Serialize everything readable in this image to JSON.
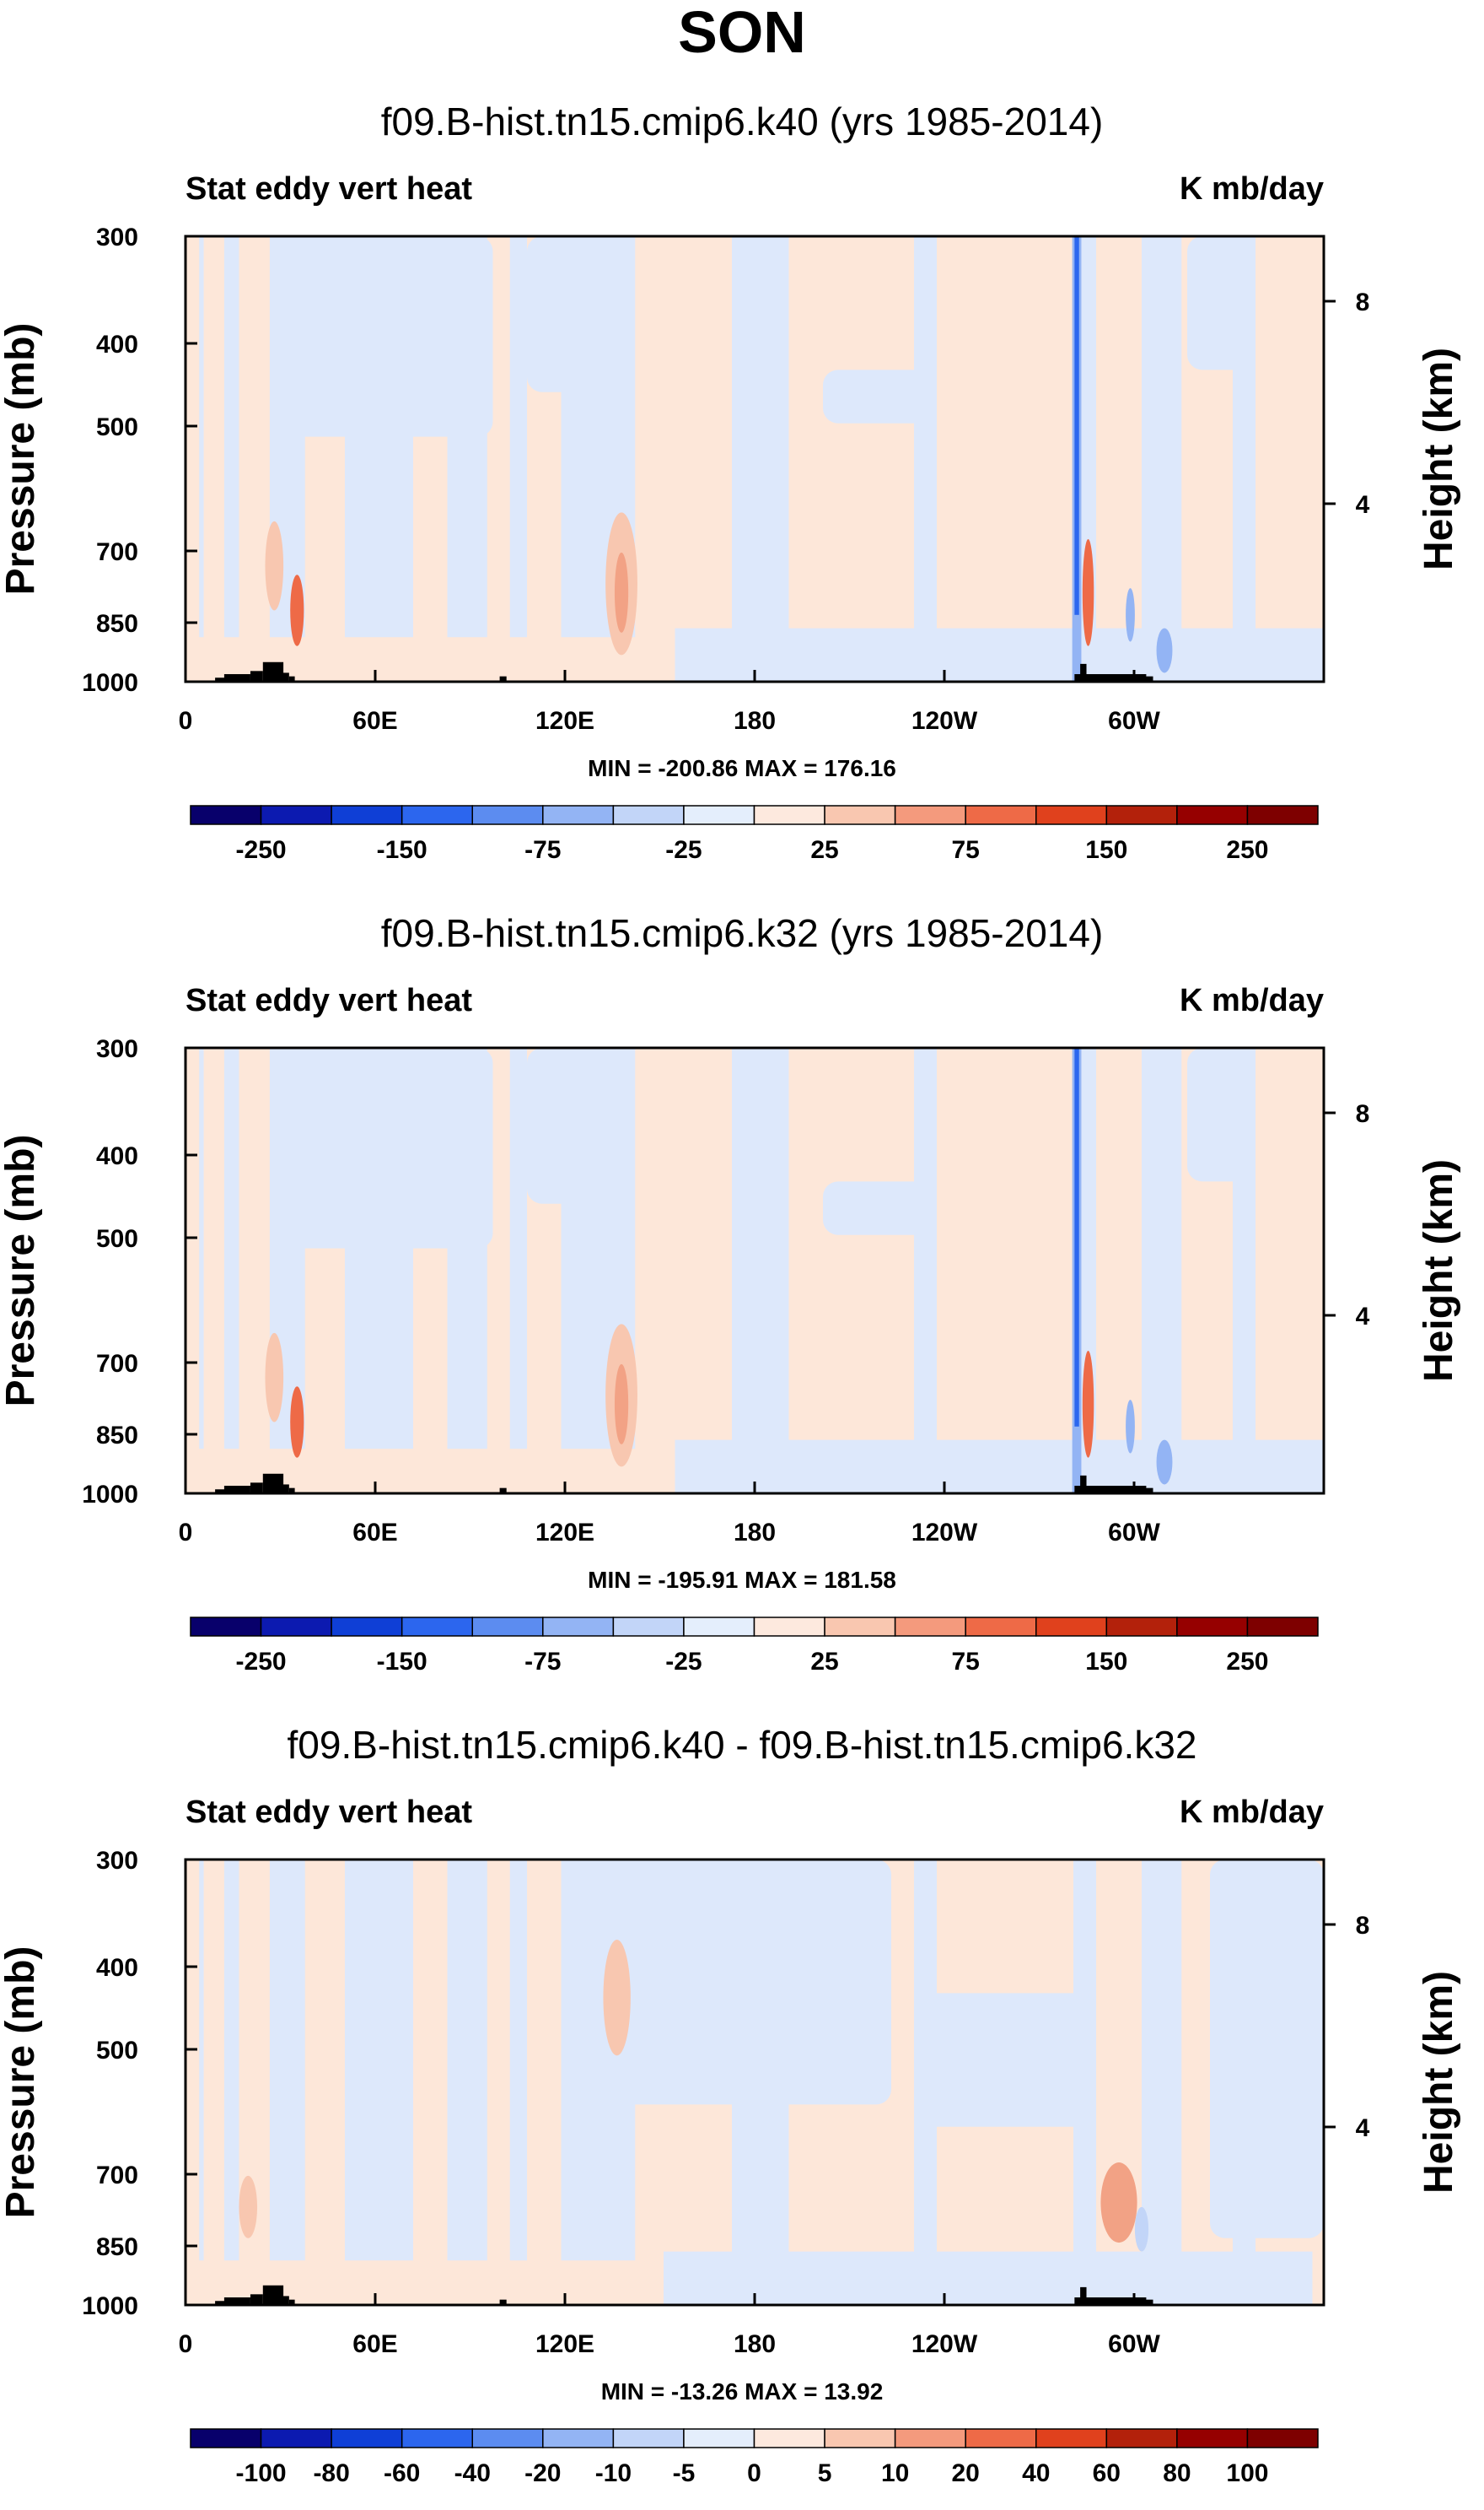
{
  "figure": {
    "title": "SON"
  },
  "colors": {
    "div12": [
      "#08006b",
      "#0c1ab0",
      "#0f3fd6",
      "#2c66ee",
      "#5c8cf0",
      "#93b4f4",
      "#c2d5f8",
      "#e4eefc",
      "#fde9de",
      "#f9c7b0",
      "#f49a7d",
      "#ee6a47",
      "#e0411d",
      "#b3210b",
      "#7e0000"
    ],
    "div16": [
      "#08006b",
      "#0c1ab0",
      "#0f3fd6",
      "#2c66ee",
      "#5c8cf0",
      "#93b4f4",
      "#c2d5f8",
      "#e4eefc",
      "#fde9de",
      "#f9c7b0",
      "#f49a7d",
      "#ee6a47",
      "#e0411d",
      "#b3210b",
      "#7e0000"
    ],
    "field_neg": "#dde8fb",
    "field_pos": "#fde7d9",
    "topography": "#000000"
  },
  "chart_data": [
    {
      "type": "contour",
      "title": "f09.B-hist.tn15.cmip6.k40 (yrs 1985-2014)",
      "variable": "Stat eddy vert heat",
      "units": "K mb/day",
      "xlabel": "",
      "ylabel": "Pressure (mb)",
      "ylabel_right": "Height (km)",
      "x_ticks": [
        "0",
        "60E",
        "120E",
        "180",
        "120W",
        "60W"
      ],
      "y_ticks": [
        "300",
        "400",
        "500",
        "700",
        "850",
        "1000"
      ],
      "y_right_ticks": [
        "8",
        "4"
      ],
      "min_max": "MIN = -200.86   MAX = 176.16",
      "min": -200.86,
      "max": 176.16,
      "colorbar_labels": [
        "-250",
        "-150",
        "-75",
        "-25",
        "25",
        "75",
        "150",
        "250"
      ],
      "colorbar_levels": [
        -250,
        -200,
        -150,
        -100,
        -75,
        -50,
        -25,
        0,
        25,
        50,
        75,
        100,
        150,
        200,
        250
      ],
      "colorbar_key": "div12"
    },
    {
      "type": "contour",
      "title": "f09.B-hist.tn15.cmip6.k32 (yrs 1985-2014)",
      "variable": "Stat eddy vert heat",
      "units": "K mb/day",
      "xlabel": "",
      "ylabel": "Pressure (mb)",
      "ylabel_right": "Height (km)",
      "x_ticks": [
        "0",
        "60E",
        "120E",
        "180",
        "120W",
        "60W"
      ],
      "y_ticks": [
        "300",
        "400",
        "500",
        "700",
        "850",
        "1000"
      ],
      "y_right_ticks": [
        "8",
        "4"
      ],
      "min_max": "MIN = -195.91   MAX = 181.58",
      "min": -195.91,
      "max": 181.58,
      "colorbar_labels": [
        "-250",
        "-150",
        "-75",
        "-25",
        "25",
        "75",
        "150",
        "250"
      ],
      "colorbar_levels": [
        -250,
        -200,
        -150,
        -100,
        -75,
        -50,
        -25,
        0,
        25,
        50,
        75,
        100,
        150,
        200,
        250
      ],
      "colorbar_key": "div12"
    },
    {
      "type": "contour",
      "title": "f09.B-hist.tn15.cmip6.k40 - f09.B-hist.tn15.cmip6.k32",
      "variable": "Stat eddy vert heat",
      "units": "K mb/day",
      "xlabel": "",
      "ylabel": "Pressure (mb)",
      "ylabel_right": "Height (km)",
      "x_ticks": [
        "0",
        "60E",
        "120E",
        "180",
        "120W",
        "60W"
      ],
      "y_ticks": [
        "300",
        "400",
        "500",
        "700",
        "850",
        "1000"
      ],
      "y_right_ticks": [
        "8",
        "4"
      ],
      "min_max": "MIN = -13.26   MAX =  13.92",
      "min": -13.26,
      "max": 13.92,
      "colorbar_labels": [
        "-100",
        "-80",
        "-60",
        "-40",
        "-20",
        "-10",
        "-5",
        "0",
        "5",
        "10",
        "20",
        "40",
        "60",
        "80",
        "100"
      ],
      "colorbar_levels": [
        -100,
        -80,
        -60,
        -40,
        -20,
        -10,
        -5,
        0,
        5,
        10,
        20,
        40,
        60,
        80,
        100
      ],
      "colorbar_key": "div16"
    }
  ]
}
